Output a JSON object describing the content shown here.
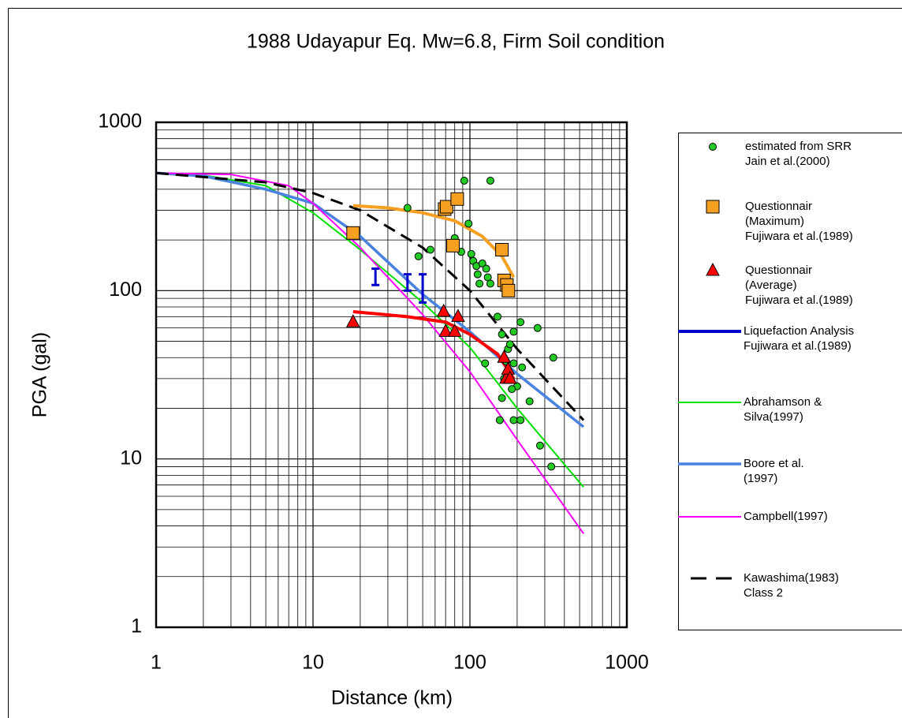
{
  "chart_data": {
    "type": "line",
    "title": "1988 Udayapur Eq. Mw=6.8, Firm Soil condition",
    "xlabel": "Distance (km)",
    "ylabel": "PGA (gal)",
    "xscale": "log",
    "yscale": "log",
    "xlim": [
      1,
      1000
    ],
    "ylim": [
      1,
      1000
    ],
    "xticks": [
      1,
      10,
      100,
      1000
    ],
    "yticks": [
      1,
      10,
      100,
      1000
    ],
    "grid": true,
    "minor_grid": true,
    "legend": "right",
    "series": [
      {
        "name": [
          "estimated from SRR",
          "Jain et al.(2000)"
        ],
        "mode": "scatter",
        "marker": "circle",
        "color": "#22cc22",
        "x": [
          40,
          47,
          56,
          80,
          92,
          98,
          88,
          102,
          105,
          110,
          120,
          112,
          127,
          130,
          115,
          135,
          150,
          160,
          175,
          180,
          190,
          210,
          190,
          165,
          170,
          125,
          160,
          155,
          190,
          210,
          240,
          270,
          280,
          330,
          340,
          135,
          200,
          215,
          185
        ],
        "y": [
          310,
          160,
          175,
          205,
          450,
          250,
          170,
          165,
          150,
          140,
          145,
          125,
          135,
          120,
          110,
          110,
          70,
          55,
          45,
          48,
          57,
          65,
          37,
          30,
          38,
          37,
          23,
          17,
          17,
          17,
          22,
          60,
          12,
          9,
          40,
          450,
          27,
          35,
          26
        ]
      },
      {
        "name": [
          "Questionnair",
          "(Maximum)",
          "Fujiwara et al.(1989)"
        ],
        "mode": "scatter",
        "marker": "square",
        "color": "#f5a020",
        "x": [
          18,
          69,
          71,
          83,
          78,
          160,
          165,
          172,
          176
        ],
        "y": [
          220,
          305,
          315,
          350,
          185,
          175,
          115,
          108,
          100
        ]
      },
      {
        "name": [
          "Questionnair",
          "(Average)",
          "Fujiwara et al.(1989)"
        ],
        "mode": "scatter",
        "marker": "triangle",
        "color": "#ff0000",
        "x": [
          18,
          68,
          70,
          80,
          84,
          165,
          170,
          175,
          180
        ],
        "y": [
          65,
          75,
          57,
          57,
          70,
          40,
          30,
          34,
          30
        ]
      },
      {
        "name": [
          "Liquefaction Analysis",
          "Fujiwara et al.(1989)"
        ],
        "mode": "errorbar",
        "color": "#0000cc",
        "x": [
          25,
          40,
          50
        ],
        "low": [
          108,
          100,
          85
        ],
        "high": [
          135,
          125,
          125
        ]
      },
      {
        "name": [
          "Abrahamson &",
          "Silva(1997)"
        ],
        "mode": "line",
        "color": "#00e000",
        "width": 2,
        "x": [
          1,
          2,
          5,
          10,
          20,
          50,
          100,
          200,
          530
        ],
        "y": [
          500,
          485,
          420,
          290,
          175,
          85,
          46,
          20,
          6.8
        ]
      },
      {
        "name": [
          "Boore et al.",
          "(1997)"
        ],
        "mode": "line",
        "color": "#4a82e0",
        "width": 3.5,
        "x": [
          1,
          2,
          5,
          10,
          20,
          50,
          100,
          200,
          530
        ],
        "y": [
          500,
          480,
          400,
          330,
          210,
          95,
          57,
          32,
          15.5
        ]
      },
      {
        "name": [
          "Campbell(1997)"
        ],
        "mode": "line",
        "color": "#ff00ff",
        "width": 2,
        "x": [
          1,
          3,
          7,
          10,
          20,
          50,
          100,
          200,
          530
        ],
        "y": [
          500,
          490,
          420,
          330,
          180,
          72,
          33,
          13,
          3.6
        ]
      },
      {
        "name": [
          "Kawashima(1983)",
          "Class 2"
        ],
        "mode": "line",
        "dash": true,
        "color": "#000000",
        "width": 3,
        "x": [
          1,
          5,
          10,
          20,
          50,
          100,
          200,
          300,
          530
        ],
        "y": [
          500,
          440,
          380,
          300,
          180,
          100,
          45,
          30,
          17
        ]
      },
      {
        "mode": "line",
        "color": "#f5a020",
        "width": 4,
        "x": [
          18,
          30,
          50,
          80,
          120,
          160,
          190
        ],
        "y": [
          320,
          310,
          290,
          260,
          210,
          160,
          120
        ]
      },
      {
        "mode": "line",
        "color": "#ff0000",
        "width": 4,
        "x": [
          18,
          40,
          70,
          100,
          150,
          190
        ],
        "y": [
          75,
          70,
          65,
          55,
          42,
          30
        ]
      }
    ]
  }
}
